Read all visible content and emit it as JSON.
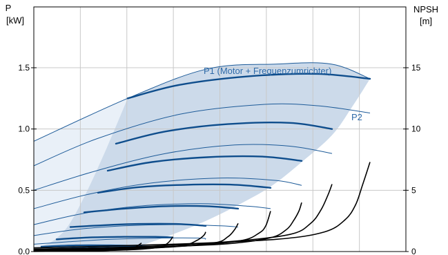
{
  "chart_data": {
    "type": "line",
    "left_axis": {
      "symbol": "P",
      "unit": "[kW]",
      "ylim": [
        0,
        2.0
      ],
      "ticks": [
        0.0,
        0.5,
        1.0,
        1.5
      ],
      "tick_labels": [
        "0.0",
        "0.5",
        "1.0",
        "1.5"
      ]
    },
    "right_axis": {
      "symbol": "NPSH",
      "unit": "[m]",
      "ylim": [
        0,
        20
      ],
      "ticks": [
        0,
        5,
        10,
        15
      ],
      "tick_labels": [
        "0",
        "5",
        "10",
        "15"
      ]
    },
    "x_axis": {
      "vertical_gridlines": 7,
      "tick_labels": []
    },
    "grid": true,
    "annotations": [
      {
        "text": "P1 (Motor + Frequenzumrichter)",
        "series": "P1"
      },
      {
        "text": "P2",
        "series": "P2"
      }
    ],
    "colors": {
      "p1_curves": "#0e4d8c",
      "p2_curves": "#1c5a98",
      "envelope_fill": "#ccdaea",
      "envelope_light_fill": "#e9f0f8",
      "npsh_curves": "#000000",
      "annotation_text": "#2e6aa8"
    },
    "p1_series": [
      {
        "x": [
          185,
          260,
          360,
          460,
          536
        ],
        "y": [
          1.25,
          1.36,
          1.43,
          1.45,
          1.41
        ]
      },
      {
        "x": [
          168,
          240,
          330,
          420,
          481
        ],
        "y": [
          0.88,
          0.98,
          1.04,
          1.05,
          1.0
        ]
      },
      {
        "x": [
          156,
          220,
          300,
          380,
          437
        ],
        "y": [
          0.66,
          0.73,
          0.77,
          0.775,
          0.74
        ]
      },
      {
        "x": [
          142,
          200,
          270,
          340,
          392
        ],
        "y": [
          0.48,
          0.525,
          0.545,
          0.545,
          0.52
        ]
      },
      {
        "x": [
          122,
          180,
          240,
          300,
          345
        ],
        "y": [
          0.32,
          0.35,
          0.37,
          0.37,
          0.35
        ]
      },
      {
        "x": [
          102,
          150,
          200,
          255,
          298
        ],
        "y": [
          0.2,
          0.215,
          0.225,
          0.225,
          0.21
        ]
      },
      {
        "x": [
          82,
          130,
          180,
          225,
          250
        ],
        "y": [
          0.1,
          0.115,
          0.12,
          0.12,
          0.115
        ]
      },
      {
        "x": [
          60,
          110,
          160,
          205
        ],
        "y": [
          0.04,
          0.05,
          0.05,
          0.045
        ]
      }
    ],
    "p2_series": [
      {
        "x": [
          49,
          185,
          300,
          400,
          480,
          536
        ],
        "y": [
          0.9,
          1.25,
          1.49,
          1.53,
          1.53,
          1.41
        ]
      },
      {
        "x": [
          49,
          140,
          260,
          380,
          460,
          536
        ],
        "y": [
          0.7,
          0.92,
          1.12,
          1.2,
          1.19,
          1.13
        ]
      },
      {
        "x": [
          49,
          140,
          240,
          340,
          420,
          481
        ],
        "y": [
          0.5,
          0.66,
          0.8,
          0.87,
          0.86,
          0.8
        ]
      },
      {
        "x": [
          49,
          130,
          220,
          320,
          400,
          437
        ],
        "y": [
          0.35,
          0.47,
          0.56,
          0.6,
          0.58,
          0.54
        ]
      },
      {
        "x": [
          49,
          120,
          200,
          290,
          360,
          392
        ],
        "y": [
          0.22,
          0.31,
          0.37,
          0.39,
          0.37,
          0.35
        ]
      },
      {
        "x": [
          49,
          110,
          180,
          250,
          320,
          345
        ],
        "y": [
          0.13,
          0.18,
          0.21,
          0.22,
          0.21,
          0.2
        ]
      },
      {
        "x": [
          49,
          100,
          160,
          230,
          290,
          298
        ],
        "y": [
          0.06,
          0.08,
          0.1,
          0.11,
          0.11,
          0.1
        ]
      },
      {
        "x": [
          49,
          100,
          160,
          220,
          250
        ],
        "y": [
          0.02,
          0.03,
          0.04,
          0.045,
          0.04
        ]
      }
    ],
    "npsh_series": [
      {
        "x": [
          49,
          250,
          400,
          470,
          500,
          515,
          525,
          536
        ],
        "y": [
          0.3,
          0.6,
          1.0,
          1.6,
          2.6,
          3.8,
          5.4,
          7.3
        ]
      },
      {
        "x": [
          49,
          200,
          330,
          420,
          450,
          465,
          475,
          481
        ],
        "y": [
          0.2,
          0.4,
          0.8,
          1.4,
          2.3,
          3.4,
          4.6,
          5.5
        ]
      },
      {
        "x": [
          49,
          180,
          320,
          390,
          415,
          425,
          433,
          437
        ],
        "y": [
          0.15,
          0.3,
          0.6,
          1.1,
          1.8,
          2.5,
          3.3,
          4.0
        ]
      },
      {
        "x": [
          49,
          150,
          280,
          350,
          375,
          385,
          392
        ],
        "y": [
          0.1,
          0.2,
          0.5,
          0.9,
          1.5,
          2.1,
          3.3
        ]
      },
      {
        "x": [
          49,
          140,
          240,
          310,
          330,
          340,
          345
        ],
        "y": [
          0.05,
          0.15,
          0.35,
          0.7,
          1.2,
          1.8,
          2.3
        ]
      },
      {
        "x": [
          49,
          130,
          210,
          265,
          285,
          295,
          298
        ],
        "y": [
          0.03,
          0.1,
          0.25,
          0.5,
          0.9,
          1.3,
          1.6
        ]
      },
      {
        "x": [
          49,
          120,
          190,
          230,
          242,
          248,
          250
        ],
        "y": [
          0.02,
          0.06,
          0.15,
          0.35,
          0.65,
          1.0,
          1.2
        ]
      },
      {
        "x": [
          49,
          110,
          160,
          190,
          200,
          205
        ],
        "y": [
          0.01,
          0.04,
          0.1,
          0.25,
          0.5,
          0.7
        ]
      }
    ],
    "envelope": {
      "upper_x": [
        49,
        185,
        300,
        400,
        480,
        536
      ],
      "upper_y": [
        0.9,
        1.25,
        1.49,
        1.53,
        1.53,
        1.41
      ],
      "right_x": [
        536,
        510,
        481,
        437,
        392,
        345,
        298,
        250,
        205
      ],
      "right_y": [
        1.41,
        1.18,
        0.95,
        0.73,
        0.53,
        0.38,
        0.25,
        0.14,
        0.05
      ],
      "lower_x": [
        205,
        160,
        110,
        49
      ],
      "lower_y": [
        0.05,
        0.05,
        0.04,
        0.02
      ],
      "boundary_x": [
        185,
        155,
        125,
        100,
        80,
        60
      ],
      "boundary_y": [
        1.25,
        0.85,
        0.48,
        0.22,
        0.1,
        0.04
      ]
    }
  }
}
